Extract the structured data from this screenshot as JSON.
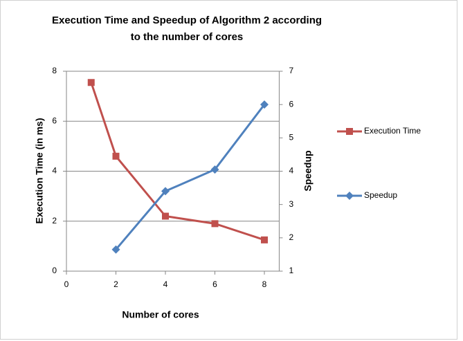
{
  "chart_data": {
    "type": "line",
    "title": "Execution Time and Speedup of Algorithm 2 according to the number of cores",
    "x_label": "Number of cores",
    "y_label": "Execution Time (in ms)",
    "y2_label": "Speedup",
    "xlim": [
      0,
      8.6
    ],
    "xticks": [
      0,
      2,
      4,
      6,
      8
    ],
    "ylim": [
      0,
      8
    ],
    "yticks": [
      0,
      2,
      4,
      6,
      8
    ],
    "y2lim": [
      1,
      7
    ],
    "y2ticks": [
      1,
      2,
      3,
      4,
      5,
      6,
      7
    ],
    "grid": true,
    "legend": "right",
    "series": [
      {
        "name": "Execution Time",
        "color": "#c0504d",
        "marker": "square",
        "axis": "y",
        "x": [
          1,
          2,
          4,
          6,
          8
        ],
        "values": [
          7.55,
          4.6,
          2.2,
          1.9,
          1.25
        ]
      },
      {
        "name": "Speedup",
        "color": "#4f81bd",
        "marker": "diamond",
        "axis": "y2",
        "x": [
          2,
          4,
          6,
          8
        ],
        "values": [
          1.65,
          3.4,
          4.05,
          6.0
        ]
      }
    ]
  }
}
